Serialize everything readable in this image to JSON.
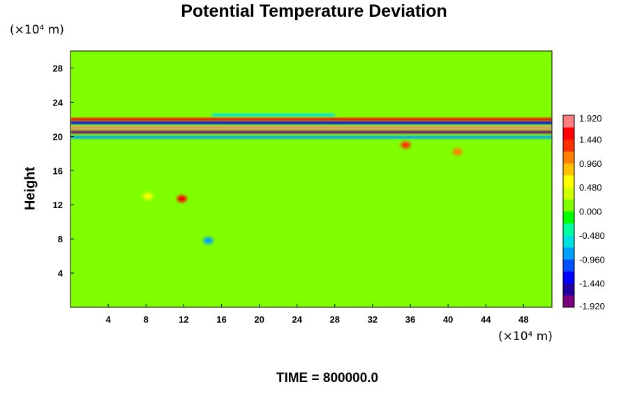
{
  "chart_data": {
    "type": "heatmap",
    "title": "Potential Temperature Deviation",
    "ylabel": "Height",
    "xlabel": "",
    "x_unit": "(×10⁴ m)",
    "y_unit": "(×10⁴ m)",
    "x_ticks": [
      "4",
      "8",
      "12",
      "16",
      "20",
      "24",
      "28",
      "32",
      "36",
      "40",
      "44",
      "48"
    ],
    "y_ticks": [
      "4",
      "8",
      "12",
      "16",
      "20",
      "24",
      "28"
    ],
    "xlim": [
      0,
      51
    ],
    "ylim": [
      0,
      30
    ],
    "colorbar": {
      "labels": [
        "1.920",
        "1.440",
        "0.960",
        "0.480",
        "0.000",
        "-0.480",
        "-0.960",
        "-1.440",
        "-1.920"
      ],
      "range": [
        -1.92,
        1.92
      ],
      "colors": [
        "#7b007b",
        "#2000a0",
        "#0000ff",
        "#0050ff",
        "#00a0ff",
        "#00e0e0",
        "#00ffa0",
        "#00ff00",
        "#80ff00",
        "#d0ff00",
        "#ffff00",
        "#ffc000",
        "#ff8000",
        "#ff3000",
        "#ff0000",
        "#ff8080"
      ]
    },
    "background_value": 0.0,
    "features": [
      {
        "kind": "band",
        "y": 21.0,
        "x_range": [
          0,
          51
        ],
        "value": 1.92
      },
      {
        "kind": "band",
        "y": 20.5,
        "x_range": [
          0,
          51
        ],
        "value": -1.92
      },
      {
        "kind": "band",
        "y": 21.6,
        "x_range": [
          0,
          51
        ],
        "value": -1.44
      },
      {
        "kind": "band",
        "y": 22.0,
        "x_range": [
          0,
          51
        ],
        "value": 1.44
      },
      {
        "kind": "band",
        "y": 19.9,
        "x_range": [
          0,
          51
        ],
        "value": -0.96
      },
      {
        "kind": "band",
        "y": 22.5,
        "x_range": [
          15,
          28
        ],
        "value": -0.72
      },
      {
        "kind": "blob",
        "x": 11.8,
        "y": 12.7,
        "value": 1.44
      },
      {
        "kind": "blob",
        "x": 8.2,
        "y": 13.0,
        "value": 0.72
      },
      {
        "kind": "blob",
        "x": 14.6,
        "y": 7.8,
        "value": -0.96
      },
      {
        "kind": "blob",
        "x": 35.5,
        "y": 19.0,
        "value": 1.2
      },
      {
        "kind": "blob",
        "x": 41.0,
        "y": 18.2,
        "value": 0.96
      }
    ]
  },
  "time_label": "TIME = 800000.0",
  "colors": {
    "background": "#00ff00",
    "axes": "#000000"
  }
}
